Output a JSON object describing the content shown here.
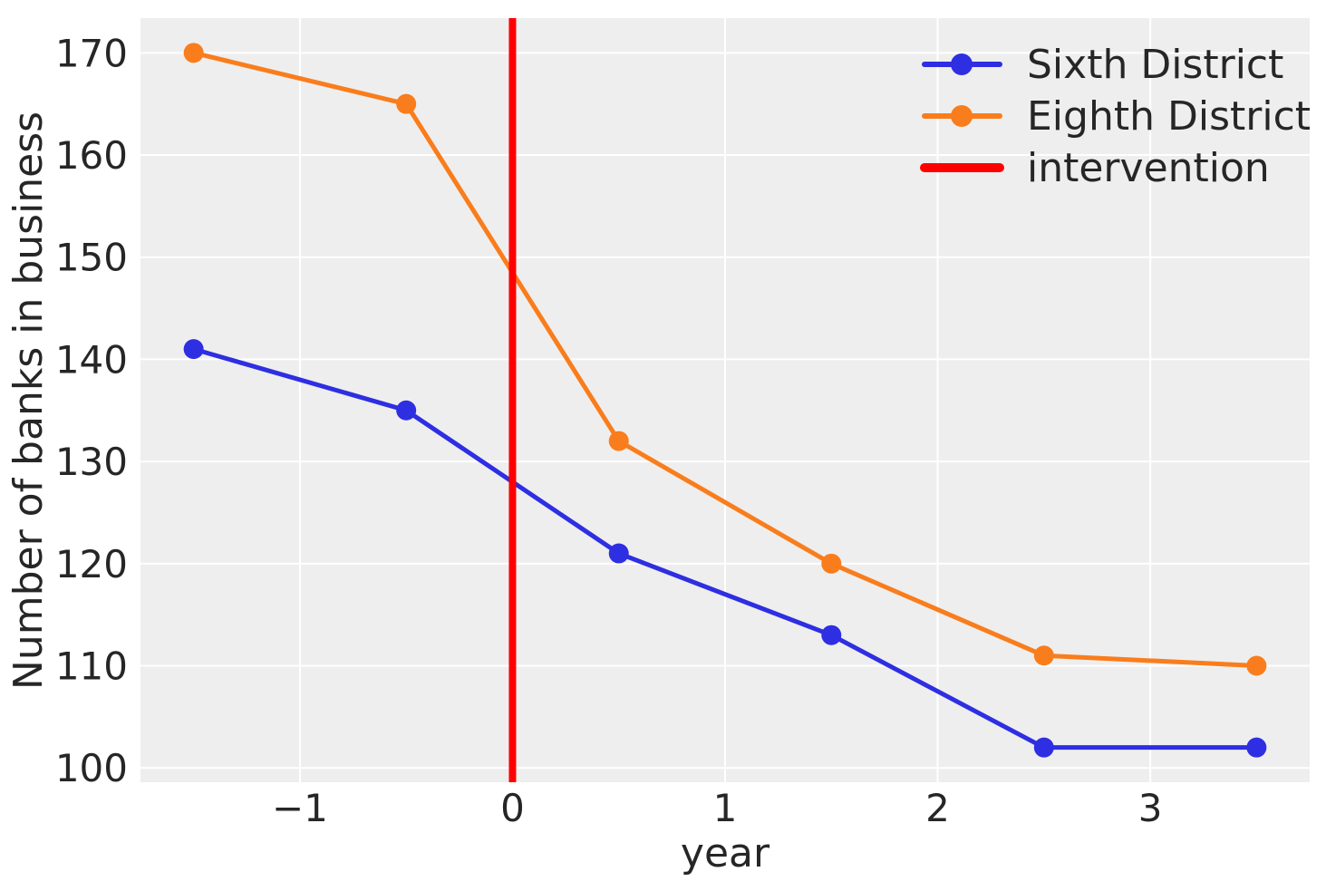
{
  "figure": {
    "background": "#ffffff",
    "plot_background": "#eeeeee",
    "grid_color": "#ffffff",
    "text_color": "#262626"
  },
  "chart_data": {
    "type": "line",
    "title": "",
    "xlabel": "year",
    "ylabel": "Number of banks in business",
    "x": [
      -1.5,
      -0.5,
      0.5,
      1.5,
      2.5,
      3.5
    ],
    "series": [
      {
        "name": "Sixth District",
        "color": "#2e2ee2",
        "marker": "circle",
        "values": [
          141,
          135,
          121,
          113,
          102,
          102
        ]
      },
      {
        "name": "Eighth District",
        "color": "#f97d1c",
        "marker": "circle",
        "values": [
          170,
          165,
          132,
          120,
          111,
          110
        ]
      }
    ],
    "intervention_line": {
      "label": "intervention",
      "x": 0,
      "color": "#ff0000"
    },
    "xticks": {
      "values": [
        -1,
        0,
        1,
        2,
        3
      ],
      "labels": [
        "−1",
        "0",
        "1",
        "2",
        "3"
      ]
    },
    "yticks": {
      "values": [
        100,
        110,
        120,
        130,
        140,
        150,
        160,
        170
      ],
      "labels": [
        "100",
        "110",
        "120",
        "130",
        "140",
        "150",
        "160",
        "170"
      ]
    },
    "xlim": [
      -1.75,
      3.75
    ],
    "ylim": [
      98.6,
      173.4
    ],
    "grid": true,
    "legend_position": "upper right",
    "legend_entries": [
      "Sixth District",
      "Eighth District",
      "intervention"
    ]
  }
}
